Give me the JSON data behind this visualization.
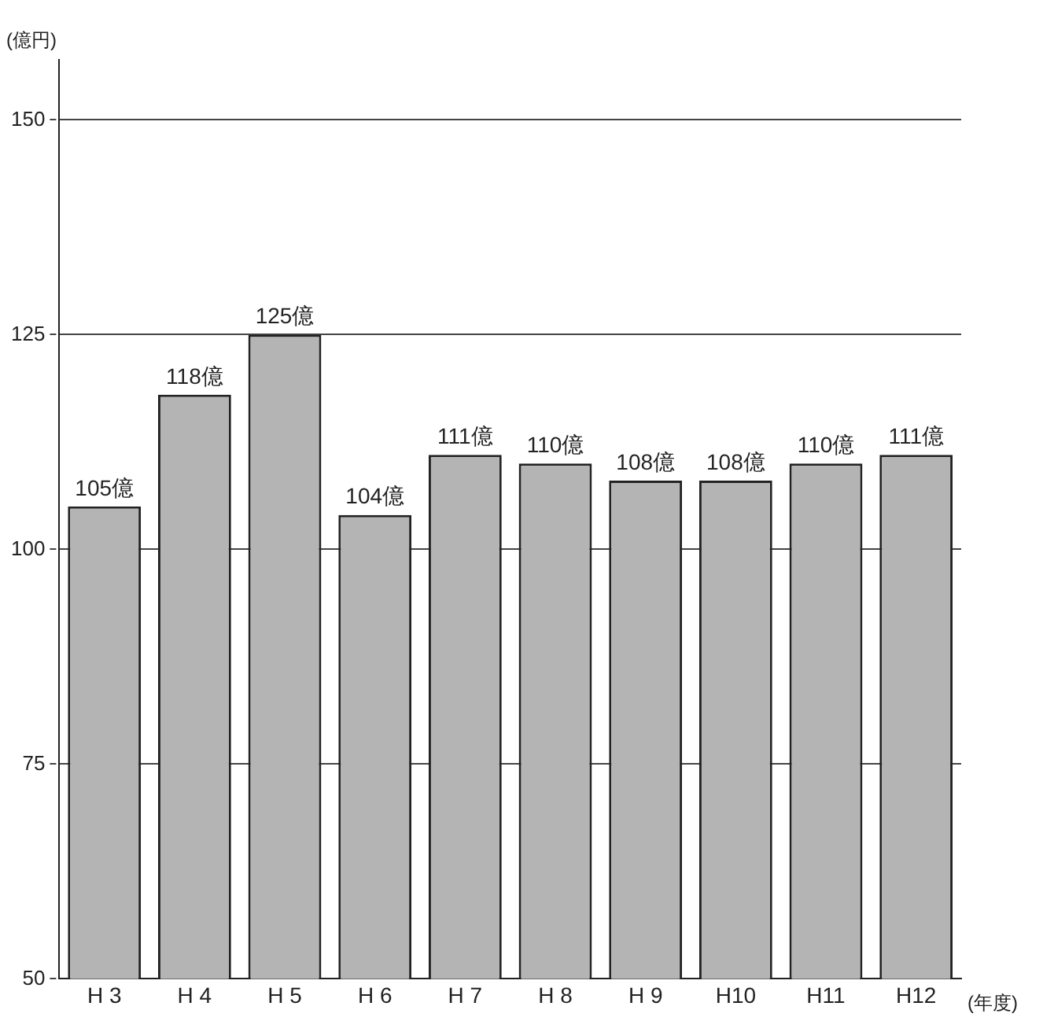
{
  "chart_data": {
    "type": "bar",
    "ylabel": "(億円)",
    "xlabel": "(年度)",
    "categories": [
      "H 3",
      "H 4",
      "H 5",
      "H 6",
      "H 7",
      "H 8",
      "H 9",
      "H10",
      "H11",
      "H12"
    ],
    "values": [
      105,
      118,
      125,
      104,
      111,
      110,
      108,
      108,
      110,
      111
    ],
    "value_labels": [
      "105億",
      "118億",
      "125億",
      "104億",
      "111億",
      "110億",
      "108億",
      "108億",
      "110億",
      "111億"
    ],
    "color": "#b4b4b4",
    "ylim": [
      50,
      157
    ],
    "yticks": [
      50,
      75,
      100,
      125,
      150
    ],
    "grid": "y",
    "line_style": "dashed"
  }
}
